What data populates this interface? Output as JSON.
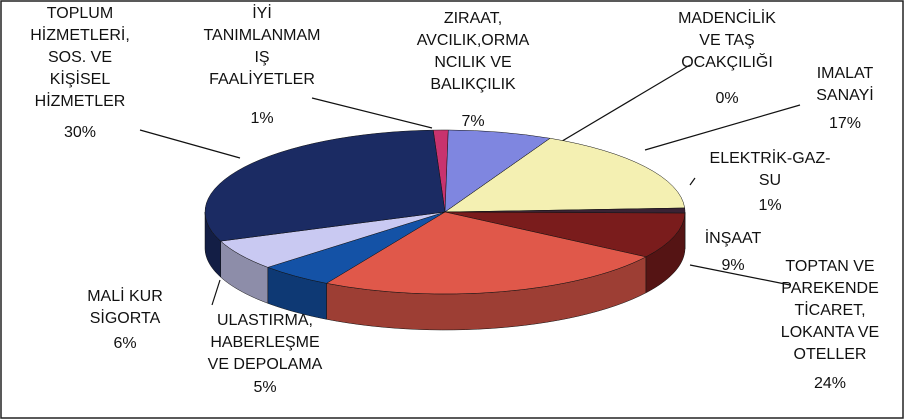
{
  "chart_data": {
    "type": "pie",
    "categories": [
      "İYİ\nTANIMLANMAM\nIŞ\nFAALİYETLER",
      "ZIRAAT,\nAVCILIK,ORMA\nNCILIK VE\nBALIKÇILIK",
      "MADENCİLİK\nVE TAŞ\nOCAKÇILIĞI",
      "IMALAT\nSANAYİ",
      "ELEKTRİK-GAZ-\nSU",
      "İNŞAAT",
      "TOPTAN VE\nPAREKENDE\nTİCARET,\nLOKANTA VE\nOTELLER",
      "ULASTIRMA,\nHABERLEŞME\nVE DEPOLAMA",
      "MALİ KUR\nSİGORTA",
      "TOPLUM\nHİZMETLERİ,\nSOS. VE\nKİŞİSEL\nHİZMETLER"
    ],
    "values": [
      1,
      7,
      0,
      17,
      1,
      9,
      24,
      5,
      6,
      30
    ],
    "value_labels": [
      "1%",
      "7%",
      "0%",
      "17%",
      "1%",
      "9%",
      "24%",
      "5%",
      "6%",
      "30%"
    ],
    "colors": [
      "#c8336e",
      "#7f86e0",
      "#a0a0a0",
      "#f4f0b2",
      "#3a2334",
      "#7a1c1c",
      "#e0584a",
      "#1452a6",
      "#c9c9f2",
      "#1b2b63"
    ]
  }
}
